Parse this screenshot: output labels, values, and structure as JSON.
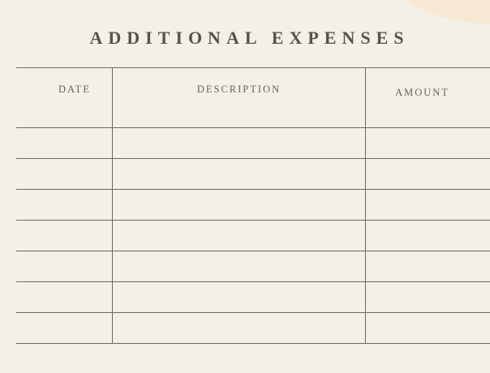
{
  "theme": {
    "background": "#f3efe9",
    "circle": "#f7e8d4",
    "line": "#73665a",
    "title_text": "#5a5246",
    "header_text": "#6b6054"
  },
  "title": "ADDITIONAL EXPENSES",
  "table": {
    "columns": [
      {
        "id": "date",
        "label": "DATE"
      },
      {
        "id": "description",
        "label": "DESCRIPTION"
      },
      {
        "id": "amount",
        "label": "AMOUNT"
      }
    ],
    "rows": [
      {
        "date": "",
        "description": "",
        "amount": ""
      },
      {
        "date": "",
        "description": "",
        "amount": ""
      },
      {
        "date": "",
        "description": "",
        "amount": ""
      },
      {
        "date": "",
        "description": "",
        "amount": ""
      },
      {
        "date": "",
        "description": "",
        "amount": ""
      },
      {
        "date": "",
        "description": "",
        "amount": ""
      },
      {
        "date": "",
        "description": "",
        "amount": ""
      }
    ]
  }
}
